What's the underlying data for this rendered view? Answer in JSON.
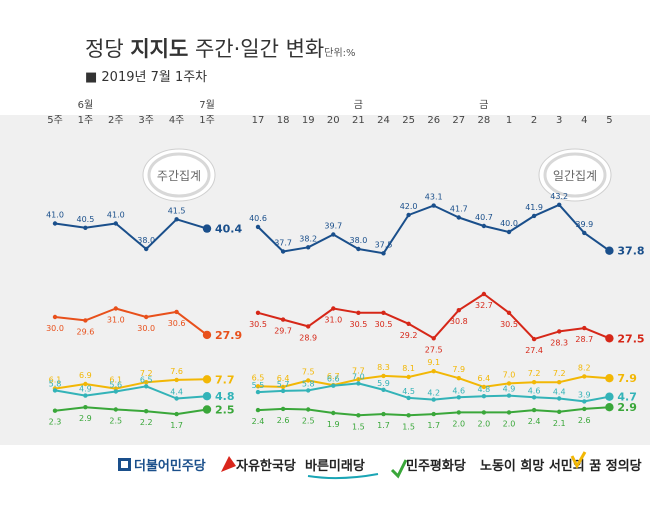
{
  "header": {
    "title_prefix": "정당 ",
    "title_bold": "지지도",
    "title_suffix": " 주간·일간 변화",
    "unit": "단위:%",
    "subtitle": "■ 2019년 7월 1주차"
  },
  "badges": {
    "weekly": "주간집계",
    "daily": "일간집계"
  },
  "legend": [
    {
      "name": "더불어민주당",
      "color": "#1a4f8b"
    },
    {
      "name": "자유한국당",
      "color": "#d9261c"
    },
    {
      "name": "바른미래당",
      "color": "#1aa5b5"
    },
    {
      "name": "민주평화당",
      "color": "#3aa73a"
    },
    {
      "name": "노동이 희망 서민의 꿈 정의당",
      "color": "#f2b705"
    }
  ],
  "chart_data": [
    {
      "type": "line",
      "title": "주간집계",
      "categories": [
        "5주",
        "6월 1주",
        "2주",
        "3주",
        "4주",
        "7월 1주"
      ],
      "tick_top": [
        "",
        "6월",
        "",
        "",
        "",
        "7월"
      ],
      "tick_bottom": [
        "5주",
        "1주",
        "2주",
        "3주",
        "4주",
        "1주"
      ],
      "series": [
        {
          "name": "더불어민주당",
          "color": "#1a4f8b",
          "values": [
            41.0,
            40.5,
            41.0,
            38.0,
            41.5,
            40.4
          ],
          "labels": [
            "41.0",
            "40.5",
            "41.0",
            "38.0",
            "41.5",
            "40.4"
          ]
        },
        {
          "name": "자유한국당",
          "color": "#e8501b",
          "values": [
            30.0,
            29.6,
            31.0,
            30.0,
            30.6,
            27.9
          ],
          "labels": [
            "30.0",
            "29.6",
            "31.0",
            "30.0",
            "30.6",
            "27.9"
          ]
        },
        {
          "name": "정의당",
          "color": "#f2b705",
          "values": [
            6.1,
            6.9,
            6.1,
            7.2,
            7.6,
            7.7
          ],
          "labels": [
            "6.1",
            "6.9",
            "6.1",
            "7.2",
            "7.6",
            "7.7"
          ]
        },
        {
          "name": "바른미래당",
          "color": "#33b3b8",
          "values": [
            5.8,
            4.9,
            5.6,
            6.5,
            4.4,
            4.8
          ],
          "labels": [
            "5.8",
            "4.9",
            "5.6",
            "6.5",
            "4.4",
            "4.8"
          ]
        },
        {
          "name": "민주평화당",
          "color": "#3aa73a",
          "values": [
            2.3,
            2.9,
            2.5,
            2.2,
            1.7,
            2.5
          ],
          "labels": [
            "2.3",
            "2.9",
            "2.5",
            "2.2",
            "1.7",
            "2.5"
          ]
        }
      ]
    },
    {
      "type": "line",
      "title": "일간집계",
      "categories": [
        "17",
        "18",
        "19",
        "20",
        "금 21",
        "24",
        "25",
        "26",
        "27",
        "금 28",
        "1",
        "2",
        "3",
        "4",
        "5"
      ],
      "tick_top": [
        "",
        "",
        "",
        "",
        "금",
        "",
        "",
        "",
        "",
        "금",
        "",
        "",
        "",
        "",
        ""
      ],
      "tick_bottom": [
        "17",
        "18",
        "19",
        "20",
        "21",
        "24",
        "25",
        "26",
        "27",
        "28",
        "1",
        "2",
        "3",
        "4",
        "5"
      ],
      "series": [
        {
          "name": "더불어민주당",
          "color": "#1a4f8b",
          "values": [
            40.6,
            37.7,
            38.2,
            39.7,
            38.0,
            37.5,
            42.0,
            43.1,
            41.7,
            40.7,
            40.0,
            41.9,
            43.2,
            39.9,
            37.8
          ],
          "labels": [
            "40.6",
            "37.7",
            "38.2",
            "39.7",
            "38.0",
            "37.5",
            "42.0",
            "43.1",
            "41.7",
            "40.7",
            "40.0",
            "41.9",
            "43.2",
            "39.9",
            "37.8"
          ]
        },
        {
          "name": "자유한국당",
          "color": "#d62718",
          "values": [
            30.5,
            29.7,
            28.9,
            31.0,
            30.5,
            30.5,
            29.2,
            27.5,
            30.8,
            32.7,
            30.5,
            27.4,
            28.3,
            28.7,
            27.5
          ],
          "labels": [
            "30.5",
            "29.7",
            "28.9",
            "31.0",
            "30.5",
            "30.5",
            "29.2",
            "27.5",
            "30.8",
            "32.7",
            "30.5",
            "27.4",
            "28.3",
            "28.7",
            "27.5"
          ]
        },
        {
          "name": "정의당",
          "color": "#f2b705",
          "values": [
            6.5,
            6.4,
            7.5,
            6.7,
            7.7,
            8.3,
            8.1,
            9.1,
            7.9,
            6.4,
            7.0,
            7.2,
            7.2,
            8.2,
            7.9
          ],
          "labels": [
            "6.5",
            "6.4",
            "7.5",
            "6.7",
            "7.7",
            "8.3",
            "8.1",
            "9.1",
            "7.9",
            "6.4",
            "7.0",
            "7.2",
            "7.2",
            "8.2",
            "7.9"
          ]
        },
        {
          "name": "바른미래당",
          "color": "#33b3b8",
          "values": [
            5.5,
            5.7,
            5.8,
            6.6,
            7.0,
            5.9,
            4.5,
            4.2,
            4.6,
            4.8,
            4.9,
            4.6,
            4.4,
            3.9,
            4.7
          ],
          "labels": [
            "5.5",
            "5.7",
            "5.8",
            "6.6",
            "7.0",
            "5.9",
            "4.5",
            "4.2",
            "4.6",
            "4.8",
            "4.9",
            "4.6",
            "4.4",
            "3.9",
            "4.7"
          ]
        },
        {
          "name": "민주평화당",
          "color": "#3aa73a",
          "values": [
            2.4,
            2.6,
            2.5,
            1.9,
            1.5,
            1.7,
            1.5,
            1.7,
            2.0,
            2.0,
            2.0,
            2.4,
            2.1,
            2.6,
            2.9
          ],
          "labels": [
            "2.4",
            "2.6",
            "2.5",
            "1.9",
            "1.5",
            "1.7",
            "1.5",
            "1.7",
            "2.0",
            "2.0",
            "2.0",
            "2.4",
            "2.1",
            "2.6",
            "2.9"
          ]
        }
      ]
    }
  ]
}
